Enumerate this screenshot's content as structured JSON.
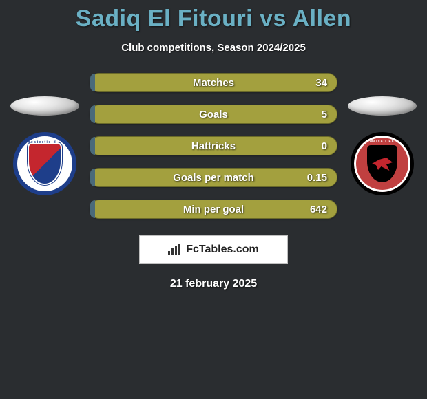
{
  "title": "Sadiq El Fitouri vs Allen",
  "subtitle": "Club competitions, Season 2024/2025",
  "date": "21 february 2025",
  "watermark_text": "FcTables.com",
  "colors": {
    "background": "#2a2d30",
    "title": "#6ab0c4",
    "bar_right": "#a3a03e",
    "bar_left": "#4a6a7a",
    "bar_border": "#6a6a2a",
    "text_white": "#ffffff"
  },
  "left_team": {
    "name": "Chesterfield FC",
    "crest_border": "#1e3e8a",
    "crest_bg": "#ffffff",
    "shield_colors": [
      "#c4262e",
      "#1e3e8a"
    ]
  },
  "right_team": {
    "name": "Walsall FC",
    "crest_border": "#000000",
    "crest_bg": "#c04040",
    "shield_bg": "#000000",
    "swift_color": "#c4262e"
  },
  "stats": [
    {
      "label": "Matches",
      "right_value": "34",
      "left_fill_pct": 2
    },
    {
      "label": "Goals",
      "right_value": "5",
      "left_fill_pct": 2
    },
    {
      "label": "Hattricks",
      "right_value": "0",
      "left_fill_pct": 2
    },
    {
      "label": "Goals per match",
      "right_value": "0.15",
      "left_fill_pct": 2
    },
    {
      "label": "Min per goal",
      "right_value": "642",
      "left_fill_pct": 2
    }
  ]
}
